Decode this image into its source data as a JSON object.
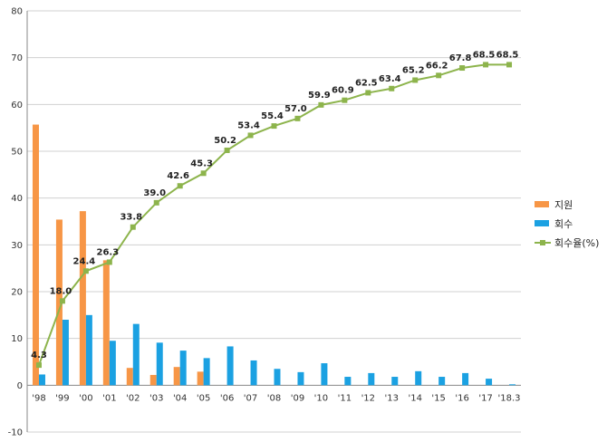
{
  "chart_data": {
    "type": "bar",
    "categories": [
      "'98",
      "'99",
      "'00",
      "'01",
      "'02",
      "'03",
      "'04",
      "'05",
      "'06",
      "'07",
      "'08",
      "'09",
      "'10",
      "'11",
      "'12",
      "'13",
      "'14",
      "'15",
      "'16",
      "'17",
      "'18.3"
    ],
    "ylim": [
      -10,
      80
    ],
    "yticks": [
      -10,
      0,
      10,
      20,
      30,
      40,
      50,
      60,
      70,
      80
    ],
    "grid": true,
    "legend_position": "right",
    "series": [
      {
        "name": "지원",
        "type": "bar",
        "color": "#F79646",
        "values": [
          55.7,
          35.4,
          37.2,
          26.7,
          3.7,
          2.2,
          3.9,
          2.9,
          0,
          0,
          0,
          0,
          0,
          0,
          0,
          0,
          0,
          0,
          0,
          0,
          0
        ]
      },
      {
        "name": "회수",
        "type": "bar",
        "color": "#1BA1E2",
        "values": [
          2.3,
          14.0,
          15.0,
          9.5,
          13.1,
          9.1,
          7.4,
          5.8,
          8.3,
          5.3,
          3.5,
          2.8,
          4.7,
          1.8,
          2.6,
          1.8,
          3.0,
          1.8,
          2.6,
          1.4,
          0.2
        ]
      },
      {
        "name": "회수율(%)",
        "type": "line",
        "color": "#8DB44C",
        "values": [
          4.3,
          18.0,
          24.4,
          26.3,
          33.8,
          39.0,
          42.6,
          45.3,
          50.2,
          53.4,
          55.4,
          57.0,
          59.9,
          60.9,
          62.5,
          63.4,
          65.2,
          66.2,
          67.8,
          68.5,
          68.5
        ],
        "labels": [
          "4.3",
          "18.0",
          "24.4",
          "26.3",
          "33.8",
          "39.0",
          "42.6",
          "45.3",
          "50.2",
          "53.4",
          "55.4",
          "57.0",
          "59.9",
          "60.9",
          "62.5",
          "63.4",
          "65.2",
          "66.2",
          "67.8",
          "68.5",
          "68.5"
        ]
      }
    ]
  }
}
